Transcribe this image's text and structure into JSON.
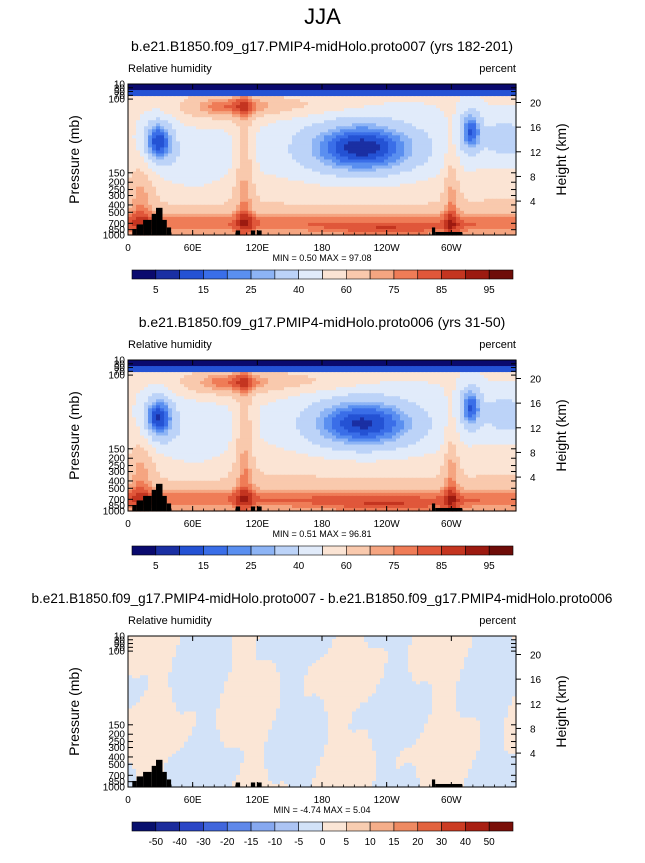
{
  "page": {
    "title": "JJA"
  },
  "palette": {
    "abs": [
      "#0a0a6e",
      "#1a2fa3",
      "#2452d4",
      "#3a6ee8",
      "#5a8ff0",
      "#8db4f5",
      "#bcd3f8",
      "#e1ebfa",
      "#fbe4d4",
      "#f9c9ad",
      "#f5a581",
      "#ef7c57",
      "#e0573a",
      "#c43520",
      "#9c1a10",
      "#6e0c08"
    ],
    "diff": [
      "#08106e",
      "#1c2c9c",
      "#2b46c6",
      "#4166dc",
      "#5f88ea",
      "#86a8f0",
      "#acc4f4",
      "#d2e2f8",
      "#fbe6d6",
      "#f8cdb1",
      "#f5ae8a",
      "#ee8a62",
      "#e2633f",
      "#cc3c23",
      "#a81f12",
      "#7a0f08"
    ],
    "topography": "#000000"
  },
  "chart_data": [
    {
      "type": "contour",
      "title": "b.e21.B1850.f09_g17.PMIP4-midHolo.proto007 (yrs 182-201)",
      "left_label": "Relative humidity",
      "right_label": "percent",
      "ylabel": "Pressure (mb)",
      "ylabel_right": "Height (km)",
      "xticks": [
        "0",
        "60E",
        "120E",
        "180",
        "120W",
        "60W"
      ],
      "yticks": [
        "10",
        "30",
        "50",
        "70",
        "100",
        "150",
        "200",
        "250",
        "300",
        "400",
        "500",
        "700",
        "850",
        "1000"
      ],
      "yticks_right": [
        "20",
        "16",
        "12",
        "8",
        "4"
      ],
      "ylim": [
        1000,
        10
      ],
      "stats": "MIN =   0.50  MAX =  97.08",
      "colorbar_labels": [
        "5",
        "15",
        "25",
        "40",
        "60",
        "75",
        "85",
        "95"
      ],
      "field": "abs",
      "variant": 0
    },
    {
      "type": "contour",
      "title": "b.e21.B1850.f09_g17.PMIP4-midHolo.proto006 (yrs 31-50)",
      "left_label": "Relative humidity",
      "right_label": "percent",
      "ylabel": "Pressure (mb)",
      "ylabel_right": "Height (km)",
      "xticks": [
        "0",
        "60E",
        "120E",
        "180",
        "120W",
        "60W"
      ],
      "yticks": [
        "10",
        "30",
        "50",
        "70",
        "100",
        "150",
        "200",
        "250",
        "300",
        "400",
        "500",
        "700",
        "850",
        "1000"
      ],
      "yticks_right": [
        "20",
        "16",
        "12",
        "8",
        "4"
      ],
      "ylim": [
        1000,
        10
      ],
      "stats": "MIN =   0.51  MAX =  96.81",
      "colorbar_labels": [
        "5",
        "15",
        "25",
        "40",
        "60",
        "75",
        "85",
        "95"
      ],
      "field": "abs",
      "variant": 1
    },
    {
      "type": "contour",
      "title": "b.e21.B1850.f09_g17.PMIP4-midHolo.proto007 - b.e21.B1850.f09_g17.PMIP4-midHolo.proto006",
      "left_label": "Relative humidity",
      "right_label": "percent",
      "ylabel": "Pressure (mb)",
      "ylabel_right": "Height (km)",
      "xticks": [
        "0",
        "60E",
        "120E",
        "180",
        "120W",
        "60W"
      ],
      "yticks": [
        "10",
        "30",
        "50",
        "70",
        "100",
        "150",
        "200",
        "250",
        "300",
        "400",
        "500",
        "700",
        "850",
        "1000"
      ],
      "yticks_right": [
        "20",
        "16",
        "12",
        "8",
        "4"
      ],
      "ylim": [
        1000,
        10
      ],
      "stats": "MIN =  -4.74  MAX =   5.04",
      "colorbar_labels": [
        "-50",
        "-40",
        "-30",
        "-20",
        "-15",
        "-10",
        "-5",
        "0",
        "5",
        "10",
        "15",
        "20",
        "30",
        "40",
        "50"
      ],
      "field": "diff",
      "variant": 2
    }
  ]
}
